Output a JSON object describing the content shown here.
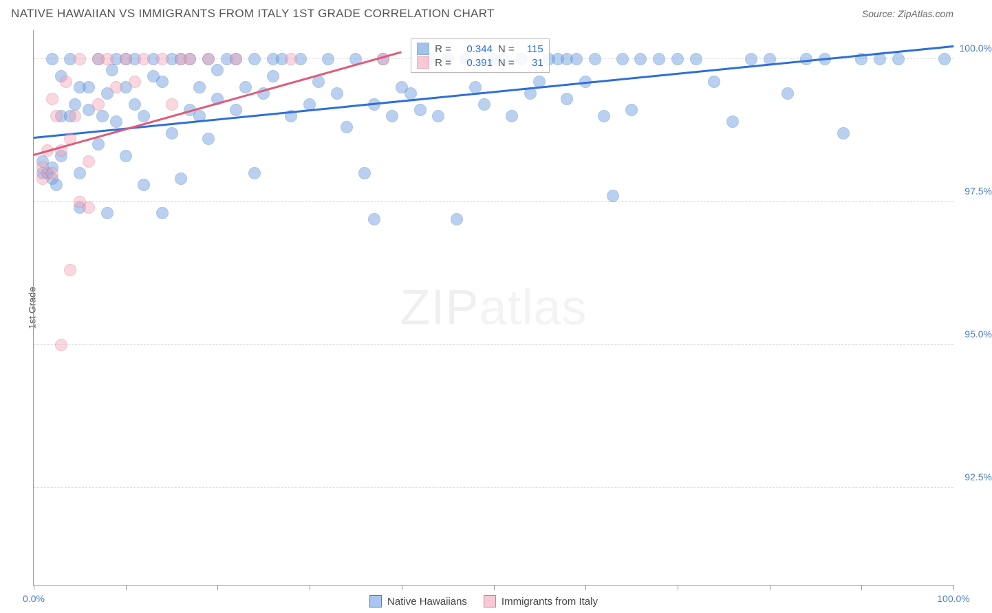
{
  "header": {
    "title": "NATIVE HAWAIIAN VS IMMIGRANTS FROM ITALY 1ST GRADE CORRELATION CHART",
    "source": "Source: ZipAtlas.com"
  },
  "chart": {
    "type": "scatter",
    "ylabel": "1st Grade",
    "xlim": [
      0,
      100
    ],
    "ylim": [
      90.8,
      100.5
    ],
    "xtick_positions": [
      0,
      10,
      20,
      30,
      40,
      50,
      60,
      70,
      80,
      90,
      100
    ],
    "xtick_labels": {
      "0": "0.0%",
      "100": "100.0%"
    },
    "ytick_positions": [
      92.5,
      95.0,
      97.5,
      100.0
    ],
    "ytick_labels": [
      "92.5%",
      "95.0%",
      "97.5%",
      "100.0%"
    ],
    "background_color": "#ffffff",
    "grid_color": "#dddddd",
    "axis_color": "#999999",
    "label_color": "#4a7ebb",
    "marker_radius": 9,
    "marker_opacity": 0.45,
    "series": [
      {
        "name": "Native Hawaiians",
        "color": "#6699e0",
        "border": "#4a7ebb",
        "R": "0.344",
        "N": "115",
        "trend": {
          "x1": 0,
          "y1": 98.6,
          "x2": 100,
          "y2": 100.2,
          "color": "#2e6fd6",
          "width": 3
        },
        "points": [
          [
            1,
            98.0
          ],
          [
            1,
            98.2
          ],
          [
            1.5,
            98.0
          ],
          [
            2,
            97.9
          ],
          [
            2,
            98.1
          ],
          [
            2,
            100.0
          ],
          [
            2.5,
            97.8
          ],
          [
            3,
            99.7
          ],
          [
            3,
            98.3
          ],
          [
            3,
            99.0
          ],
          [
            4,
            99.0
          ],
          [
            4,
            100.0
          ],
          [
            4.5,
            99.2
          ],
          [
            5,
            98.0
          ],
          [
            5,
            99.5
          ],
          [
            5,
            97.4
          ],
          [
            6,
            99.5
          ],
          [
            6,
            99.1
          ],
          [
            7,
            98.5
          ],
          [
            7,
            100.0
          ],
          [
            7.5,
            99.0
          ],
          [
            8,
            97.3
          ],
          [
            8,
            99.4
          ],
          [
            8.5,
            99.8
          ],
          [
            9,
            98.9
          ],
          [
            9,
            100.0
          ],
          [
            10,
            99.5
          ],
          [
            10,
            98.3
          ],
          [
            10,
            100.0
          ],
          [
            11,
            99.2
          ],
          [
            11,
            100.0
          ],
          [
            12,
            97.8
          ],
          [
            12,
            99.0
          ],
          [
            13,
            100.0
          ],
          [
            13,
            99.7
          ],
          [
            14,
            97.3
          ],
          [
            14,
            99.6
          ],
          [
            15,
            98.7
          ],
          [
            15,
            100.0
          ],
          [
            16,
            100.0
          ],
          [
            16,
            97.9
          ],
          [
            17,
            99.1
          ],
          [
            17,
            100.0
          ],
          [
            18,
            99.0
          ],
          [
            18,
            99.5
          ],
          [
            19,
            100.0
          ],
          [
            19,
            98.6
          ],
          [
            20,
            99.8
          ],
          [
            20,
            99.3
          ],
          [
            21,
            100.0
          ],
          [
            22,
            99.1
          ],
          [
            22,
            100.0
          ],
          [
            23,
            99.5
          ],
          [
            24,
            98.0
          ],
          [
            24,
            100.0
          ],
          [
            25,
            99.4
          ],
          [
            26,
            100.0
          ],
          [
            26,
            99.7
          ],
          [
            27,
            100.0
          ],
          [
            28,
            99.0
          ],
          [
            29,
            100.0
          ],
          [
            30,
            99.2
          ],
          [
            31,
            99.6
          ],
          [
            32,
            100.0
          ],
          [
            33,
            99.4
          ],
          [
            34,
            98.8
          ],
          [
            35,
            100.0
          ],
          [
            36,
            98.0
          ],
          [
            37,
            99.2
          ],
          [
            37,
            97.2
          ],
          [
            38,
            100.0
          ],
          [
            39,
            99.0
          ],
          [
            40,
            99.5
          ],
          [
            41,
            99.4
          ],
          [
            42,
            99.1
          ],
          [
            43,
            100.0
          ],
          [
            44,
            99.0
          ],
          [
            45,
            100.0
          ],
          [
            46,
            97.2
          ],
          [
            47,
            100.0
          ],
          [
            48,
            99.5
          ],
          [
            49,
            99.2
          ],
          [
            50,
            100.0
          ],
          [
            51,
            100.0
          ],
          [
            52,
            99.0
          ],
          [
            53,
            100.0
          ],
          [
            54,
            99.4
          ],
          [
            55,
            99.6
          ],
          [
            56,
            100.0
          ],
          [
            57,
            100.0
          ],
          [
            58,
            100.0
          ],
          [
            58,
            99.3
          ],
          [
            59,
            100.0
          ],
          [
            60,
            99.6
          ],
          [
            61,
            100.0
          ],
          [
            62,
            99.0
          ],
          [
            63,
            97.6
          ],
          [
            64,
            100.0
          ],
          [
            65,
            99.1
          ],
          [
            66,
            100.0
          ],
          [
            68,
            100.0
          ],
          [
            70,
            100.0
          ],
          [
            72,
            100.0
          ],
          [
            74,
            99.6
          ],
          [
            76,
            98.9
          ],
          [
            78,
            100.0
          ],
          [
            80,
            100.0
          ],
          [
            82,
            99.4
          ],
          [
            84,
            100.0
          ],
          [
            86,
            100.0
          ],
          [
            88,
            98.7
          ],
          [
            90,
            100.0
          ],
          [
            92,
            100.0
          ],
          [
            94,
            100.0
          ],
          [
            99,
            100.0
          ]
        ]
      },
      {
        "name": "Immigrants from Italy",
        "color": "#f4a6b8",
        "border": "#e07a90",
        "R": "0.391",
        "N": "31",
        "trend": {
          "x1": 0,
          "y1": 98.3,
          "x2": 40,
          "y2": 100.1,
          "color": "#e05a78",
          "width": 3
        },
        "points": [
          [
            1,
            98.1
          ],
          [
            1,
            97.9
          ],
          [
            1.5,
            98.4
          ],
          [
            2,
            98.0
          ],
          [
            2,
            99.3
          ],
          [
            2.5,
            99.0
          ],
          [
            3,
            95.0
          ],
          [
            3,
            98.4
          ],
          [
            3.5,
            99.6
          ],
          [
            4,
            98.6
          ],
          [
            4,
            96.3
          ],
          [
            4.5,
            99.0
          ],
          [
            5,
            97.5
          ],
          [
            5,
            100.0
          ],
          [
            6,
            98.2
          ],
          [
            6,
            97.4
          ],
          [
            7,
            100.0
          ],
          [
            7,
            99.2
          ],
          [
            8,
            100.0
          ],
          [
            9,
            99.5
          ],
          [
            10,
            100.0
          ],
          [
            11,
            99.6
          ],
          [
            12,
            100.0
          ],
          [
            14,
            100.0
          ],
          [
            15,
            99.2
          ],
          [
            16,
            100.0
          ],
          [
            17,
            100.0
          ],
          [
            19,
            100.0
          ],
          [
            22,
            100.0
          ],
          [
            28,
            100.0
          ],
          [
            38,
            100.0
          ]
        ]
      }
    ],
    "watermark": {
      "bold": "ZIP",
      "thin": "atlas"
    },
    "legend_rn_pos": {
      "left_pct": 41,
      "top_pct": 1.5
    },
    "legend_bottom": [
      {
        "label": "Native Hawaiians",
        "fill": "#a9c6f0",
        "border": "#4a7ebb"
      },
      {
        "label": "Immigrants from Italy",
        "fill": "#f7c9d4",
        "border": "#e07a90"
      }
    ]
  }
}
